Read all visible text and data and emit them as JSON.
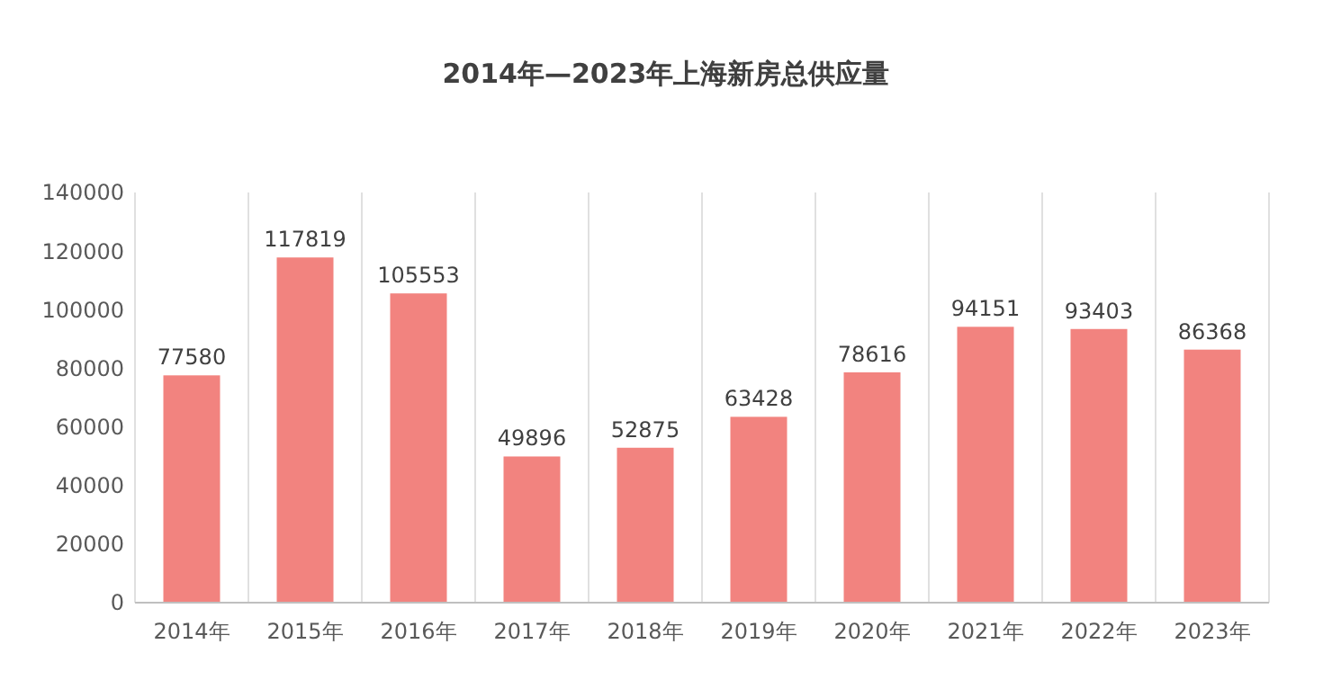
{
  "chart_data": {
    "type": "bar",
    "title": "2014年—2023年上海新房总供应量",
    "categories": [
      "2014年",
      "2015年",
      "2016年",
      "2017年",
      "2018年",
      "2019年",
      "2020年",
      "2021年",
      "2022年",
      "2023年"
    ],
    "values": [
      77580,
      117819,
      105553,
      49896,
      52875,
      63428,
      78616,
      94151,
      93403,
      86368
    ],
    "color": "#f2837f",
    "ylim": [
      0,
      140000
    ],
    "yticks": [
      0,
      20000,
      40000,
      60000,
      80000,
      100000,
      120000,
      140000
    ],
    "grid": "x",
    "data_labels": true
  }
}
